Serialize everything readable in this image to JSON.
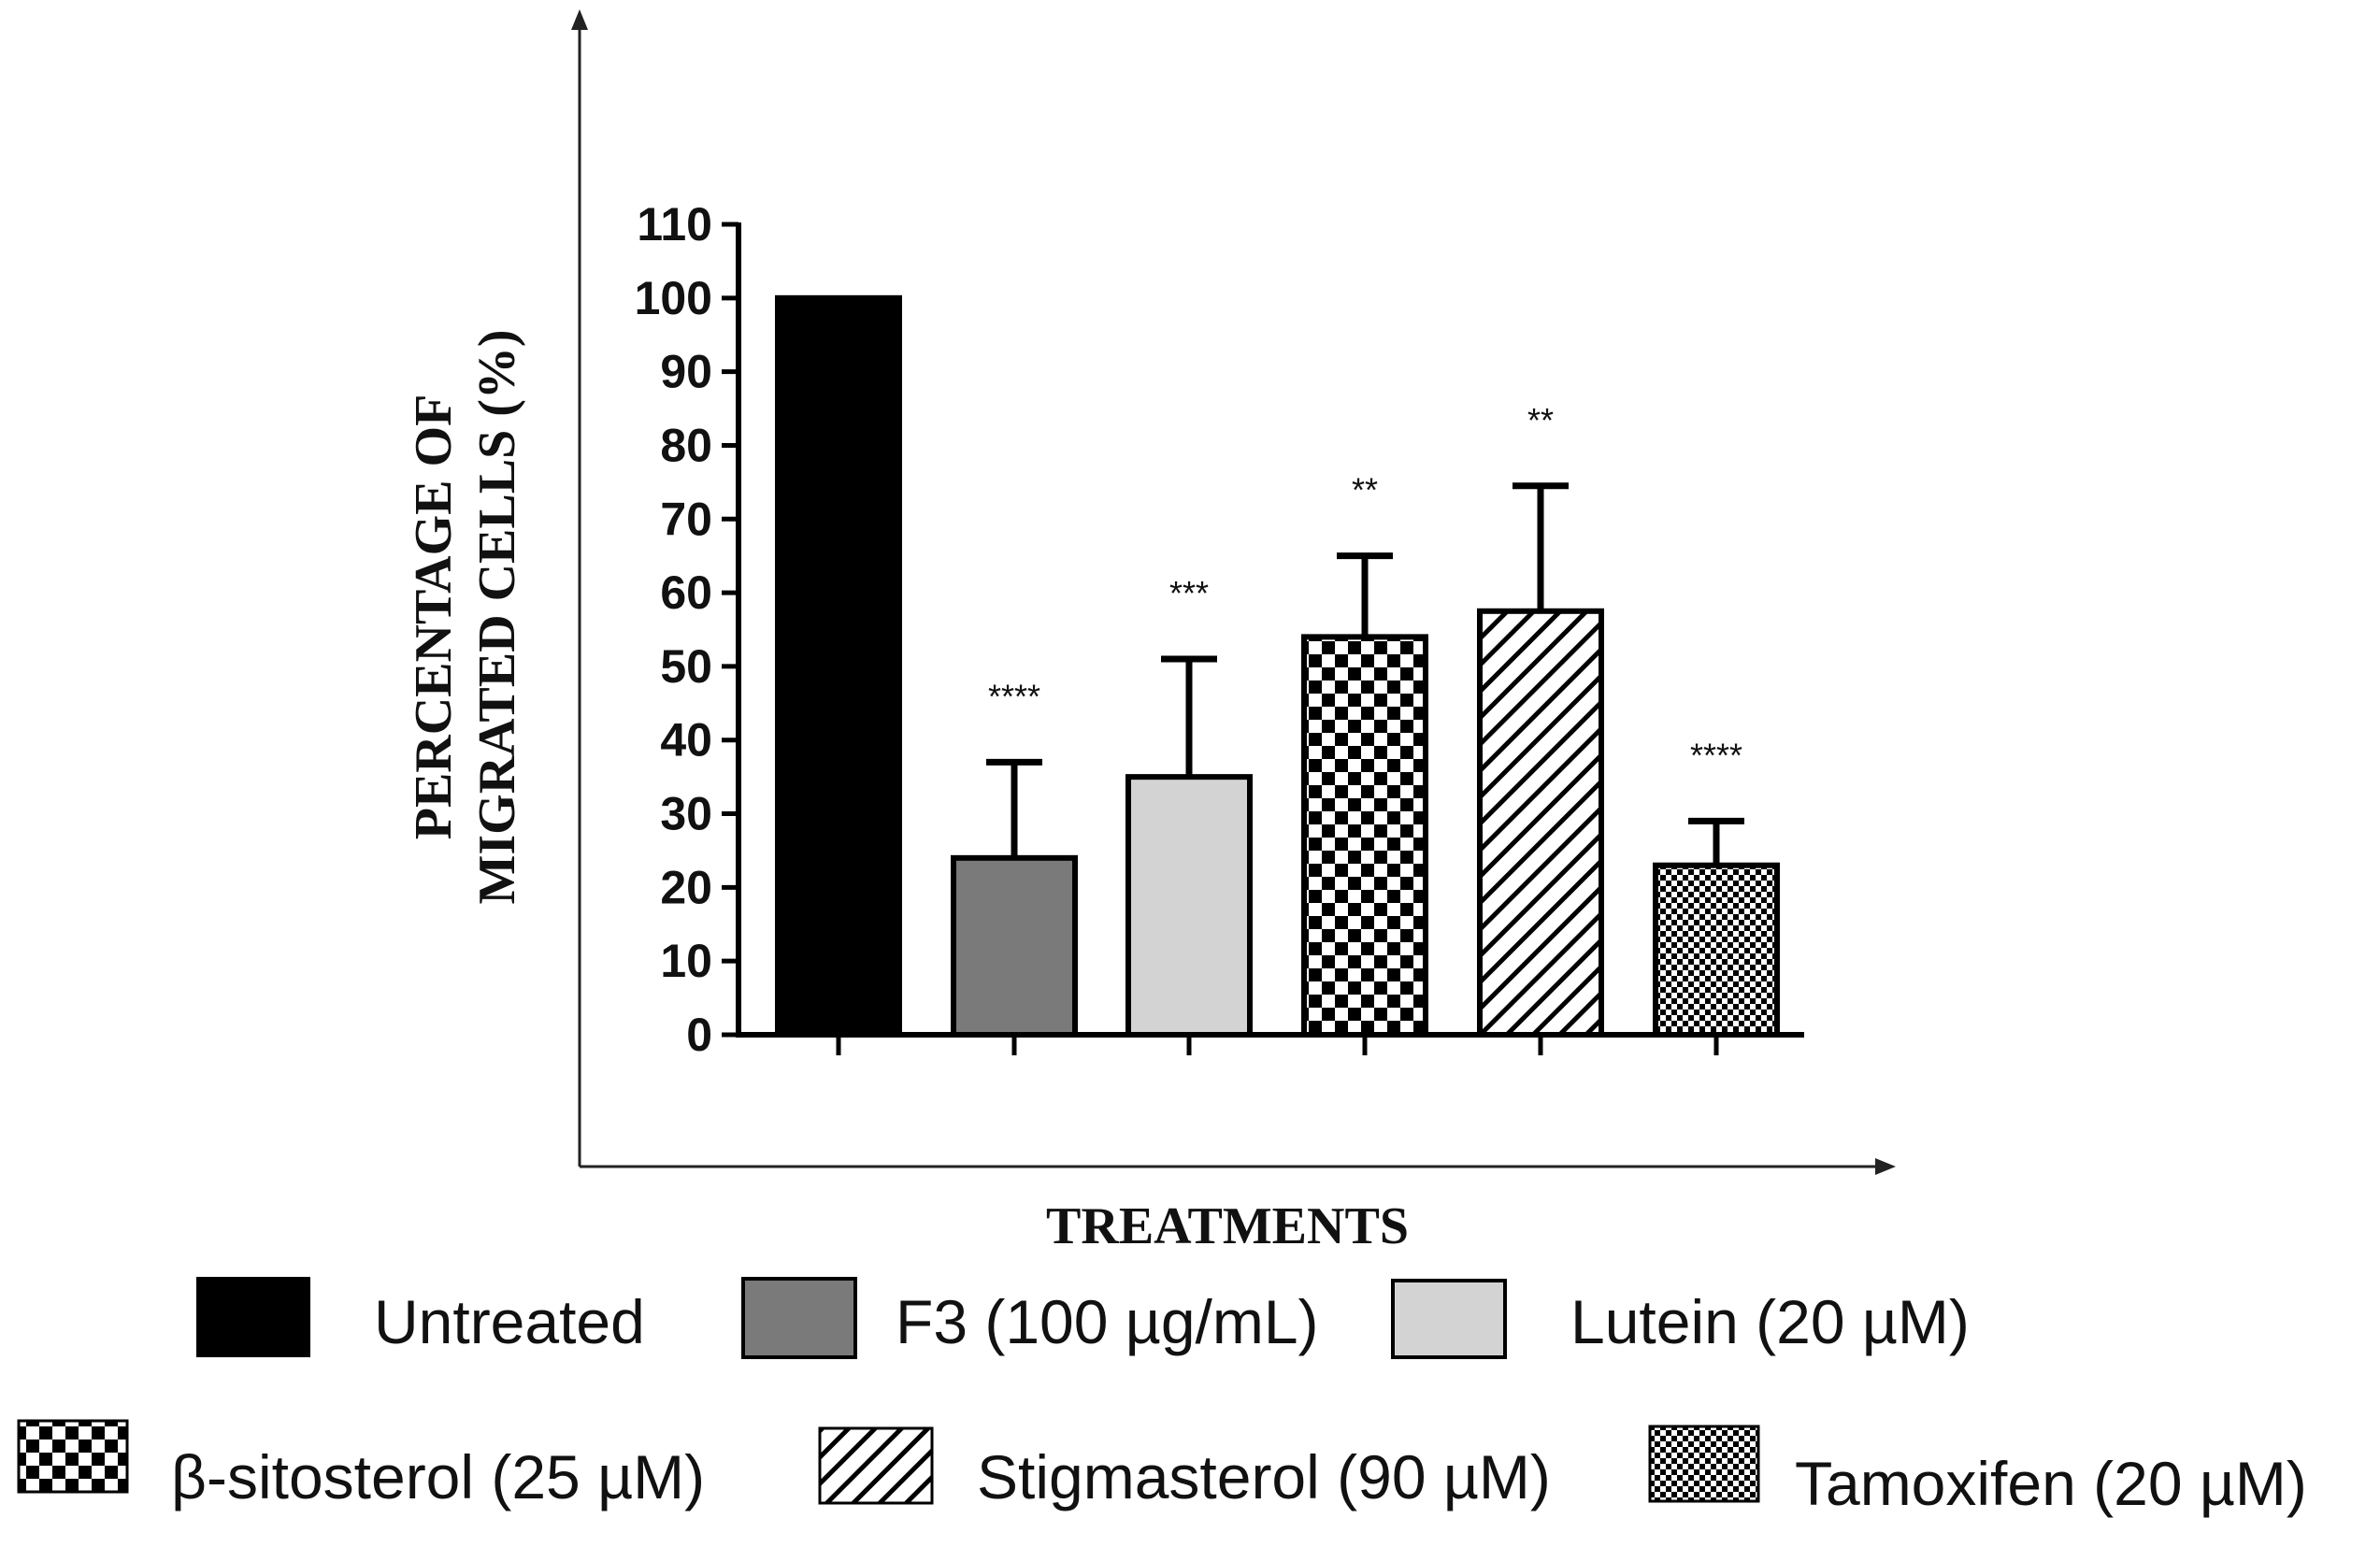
{
  "chart_data": {
    "type": "bar",
    "xlabel": "TREATMENTS",
    "ylabel_lines": [
      "PERCENTAGE OF",
      "MIGRATED CELLS (%)"
    ],
    "ylim": [
      0,
      110
    ],
    "yticks": [
      "0",
      "10",
      "20",
      "30",
      "40",
      "50",
      "60",
      "70",
      "80",
      "90",
      "100",
      "110"
    ],
    "grid": false,
    "legend_position": "bottom",
    "categories": [
      "Untreated",
      "F3 (100 µg/mL)",
      "Lutein (20 µM)",
      "β-sitosterol (25 µM)",
      "Stigmasterol (90 µM)",
      "Tamoxifen (20 µM)"
    ],
    "values": [
      100,
      24,
      35,
      54,
      57.5,
      23
    ],
    "error_upper": [
      0,
      13,
      16,
      11,
      17,
      6
    ],
    "significance": [
      "",
      "****",
      "***",
      "**",
      "**",
      "****"
    ],
    "patterns": [
      "solid-black",
      "solid-dark-gray",
      "solid-light-gray",
      "checker",
      "diagonal-hatch",
      "fine-checker"
    ],
    "colors": {
      "black": "#000000",
      "dark_gray": "#7a7a7a",
      "light_gray": "#d3d3d3"
    }
  }
}
